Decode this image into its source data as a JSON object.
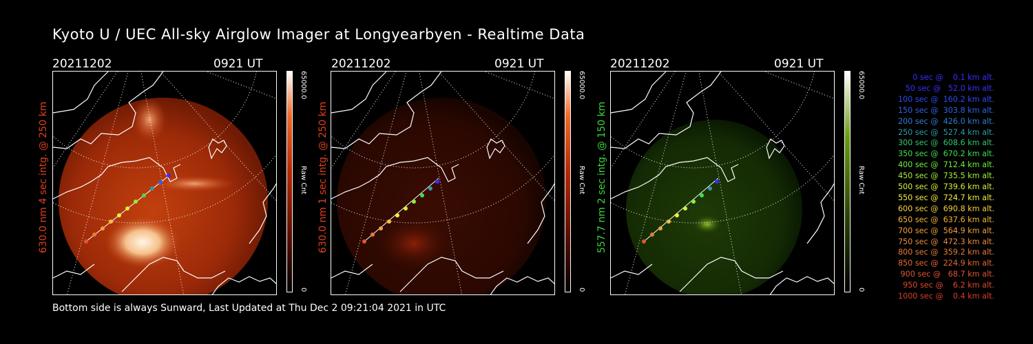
{
  "title": "Kyoto U / UEC All-sky Airglow Imager at Longyearbyen - Realtime Data",
  "footer": "Bottom side is always Sunward, Last Updated at Thu Dec  2 09:21:04 2021 in UTC",
  "colorbar": {
    "max_label": "65000.0",
    "min_label": "0",
    "unit_label": "Raw Cnt"
  },
  "panels": [
    {
      "date": "20211202",
      "time": "0921 UT",
      "side_label": "630.0 nm 4 sec intg. @ 250 km",
      "color": "#e0401c",
      "glow": "bright-red"
    },
    {
      "date": "20211202",
      "time": "0921 UT",
      "side_label": "630.0 nm 1 sec intg. @ 250 km",
      "color": "#e0401c",
      "glow": "dim-red"
    },
    {
      "date": "20211202",
      "time": "0921 UT",
      "side_label": "557.7 nm 2 sec intg. @ 150 km",
      "color": "#3cd63c",
      "glow": "green"
    }
  ],
  "trajectory_legend": [
    {
      "text": "0 sec @    0.1 km alt.",
      "color": "#3a2cff"
    },
    {
      "text": "50 sec @   52.0 km alt.",
      "color": "#3a2cff"
    },
    {
      "text": "100 sec @  160.2 km alt.",
      "color": "#2d4cf2"
    },
    {
      "text": "150 sec @  303.8 km alt.",
      "color": "#2d63e8"
    },
    {
      "text": "200 sec @  426.0 km alt.",
      "color": "#2e7fd0"
    },
    {
      "text": "250 sec @  527.4 km alt.",
      "color": "#2e9aa8"
    },
    {
      "text": "300 sec @  608.6 km alt.",
      "color": "#2ec86e"
    },
    {
      "text": "350 sec @  670.2 km alt.",
      "color": "#3ce04c"
    },
    {
      "text": "400 sec @  712.4 km alt.",
      "color": "#6ef03a"
    },
    {
      "text": "450 sec @  735.5 km alt.",
      "color": "#a4f03a"
    },
    {
      "text": "500 sec @  739.6 km alt.",
      "color": "#d4f03a"
    },
    {
      "text": "550 sec @  724.7 km alt.",
      "color": "#f0f03a"
    },
    {
      "text": "600 sec @  690.8 km alt.",
      "color": "#f5d23a"
    },
    {
      "text": "650 sec @  637.6 km alt.",
      "color": "#f5b43a"
    },
    {
      "text": "700 sec @  564.9 km alt.",
      "color": "#f0a03c"
    },
    {
      "text": "750 sec @  472.3 km alt.",
      "color": "#ec8c3c"
    },
    {
      "text": "800 sec @  359.2 km alt.",
      "color": "#e87a38"
    },
    {
      "text": "850 sec @  224.9 km alt.",
      "color": "#e46834"
    },
    {
      "text": "900 sec @   68.7 km alt.",
      "color": "#e05630"
    },
    {
      "text": "950 sec @    6.2 km alt.",
      "color": "#dc4a2c"
    },
    {
      "text": "1000 sec @    0.4 km alt.",
      "color": "#d83e28"
    }
  ]
}
